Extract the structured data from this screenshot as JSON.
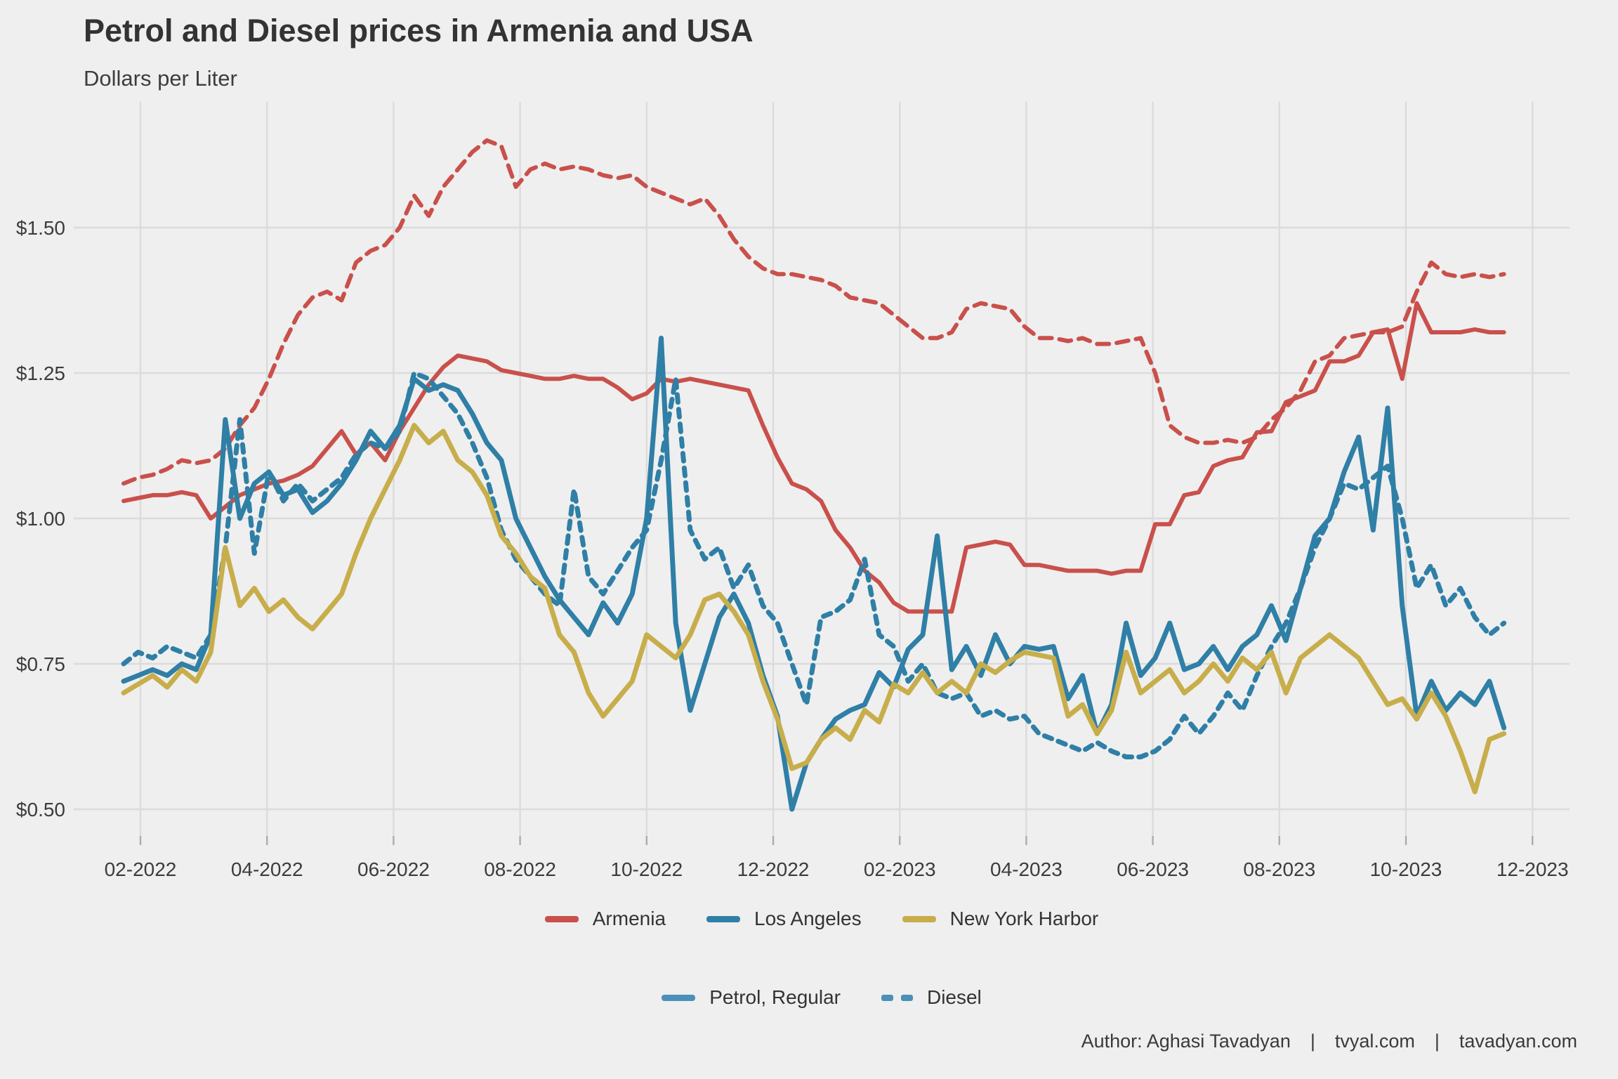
{
  "header": {
    "title": "Petrol and Diesel prices in Armenia and USA",
    "subtitle": "Dollars per Liter"
  },
  "footer": {
    "author": "Author: Aghasi Tavadyan",
    "separator": "|",
    "site1": "tvyal.com",
    "site2": "tavadyan.com"
  },
  "legend_region": {
    "items": [
      {
        "label": "Armenia",
        "color": "#C9504B"
      },
      {
        "label": "Los Angeles",
        "color": "#2F7FA6"
      },
      {
        "label": "New York Harbor",
        "color": "#C7AE4B"
      }
    ]
  },
  "legend_fuel": {
    "color": "#4A90B8",
    "items": [
      {
        "label": "Petrol, Regular",
        "dash": "solid"
      },
      {
        "label": "Diesel",
        "dash": "dashed"
      }
    ]
  },
  "chart_data": {
    "type": "line",
    "title": "Petrol and Diesel prices in Armenia and USA",
    "ylabel_note": "Dollars per Liter",
    "grid": true,
    "legend_position": "bottom",
    "background": "#EFEFEF",
    "grid_color": "#DBDBDB",
    "tick_color": "#ACACAC",
    "label_color": "#3c3c3c",
    "x_axis": {
      "start_date": "2022-01-24",
      "interval_days": 7,
      "n_points": 96,
      "tick_labels": [
        "02-2022",
        "04-2022",
        "06-2022",
        "08-2022",
        "10-2022",
        "12-2022",
        "02-2023",
        "04-2023",
        "06-2023",
        "08-2023",
        "10-2023",
        "12-2023"
      ],
      "tick_month_offsets": [
        0,
        2,
        4,
        6,
        8,
        10,
        12,
        14,
        16,
        18,
        20,
        22
      ]
    },
    "y_axis": {
      "tick_labels": [
        "$0.50",
        "$0.75",
        "$1.00",
        "$1.25",
        "$1.50"
      ],
      "tick_values": [
        0.5,
        0.75,
        1.0,
        1.25,
        1.5
      ],
      "ylim": [
        0.45,
        1.72
      ]
    },
    "series": [
      {
        "name": "Armenia Petrol, Regular",
        "region": "Armenia",
        "fuel": "Petrol, Regular",
        "color": "#C9504B",
        "dash": "solid",
        "width": 6,
        "values": [
          1.03,
          1.035,
          1.04,
          1.04,
          1.045,
          1.04,
          1.0,
          1.02,
          1.04,
          1.05,
          1.06,
          1.065,
          1.075,
          1.09,
          1.12,
          1.15,
          1.11,
          1.13,
          1.1,
          1.15,
          1.19,
          1.23,
          1.26,
          1.28,
          1.275,
          1.27,
          1.255,
          1.25,
          1.245,
          1.24,
          1.24,
          1.245,
          1.24,
          1.24,
          1.225,
          1.205,
          1.215,
          1.24,
          1.235,
          1.24,
          1.235,
          1.23,
          1.225,
          1.22,
          1.16,
          1.105,
          1.06,
          1.05,
          1.03,
          0.98,
          0.95,
          0.91,
          0.89,
          0.855,
          0.84,
          0.84,
          0.84,
          0.84,
          0.95,
          0.955,
          0.96,
          0.955,
          0.92,
          0.92,
          0.915,
          0.91,
          0.91,
          0.91,
          0.905,
          0.91,
          0.91,
          0.99,
          0.99,
          1.04,
          1.045,
          1.09,
          1.1,
          1.105,
          1.148,
          1.15,
          1.2,
          1.21,
          1.22,
          1.27,
          1.27,
          1.28,
          1.32,
          1.325,
          1.24,
          1.37,
          1.32,
          1.32,
          1.32,
          1.325,
          1.32,
          1.32
        ]
      },
      {
        "name": "Armenia Diesel",
        "region": "Armenia",
        "fuel": "Diesel",
        "color": "#C9504B",
        "dash": "dashed",
        "width": 6,
        "values": [
          1.06,
          1.07,
          1.075,
          1.085,
          1.1,
          1.095,
          1.1,
          1.12,
          1.16,
          1.19,
          1.24,
          1.3,
          1.35,
          1.38,
          1.39,
          1.375,
          1.44,
          1.46,
          1.47,
          1.5,
          1.555,
          1.52,
          1.57,
          1.6,
          1.63,
          1.65,
          1.64,
          1.57,
          1.6,
          1.61,
          1.6,
          1.605,
          1.6,
          1.59,
          1.585,
          1.59,
          1.57,
          1.56,
          1.55,
          1.54,
          1.55,
          1.52,
          1.48,
          1.45,
          1.43,
          1.42,
          1.42,
          1.415,
          1.41,
          1.4,
          1.38,
          1.375,
          1.37,
          1.35,
          1.33,
          1.31,
          1.31,
          1.32,
          1.36,
          1.37,
          1.365,
          1.36,
          1.33,
          1.31,
          1.31,
          1.305,
          1.31,
          1.3,
          1.3,
          1.305,
          1.31,
          1.25,
          1.16,
          1.14,
          1.13,
          1.13,
          1.135,
          1.13,
          1.14,
          1.17,
          1.19,
          1.22,
          1.27,
          1.28,
          1.31,
          1.315,
          1.32,
          1.32,
          1.33,
          1.39,
          1.44,
          1.42,
          1.415,
          1.42,
          1.415,
          1.42
        ]
      },
      {
        "name": "Los Angeles Petrol, Regular",
        "region": "Los Angeles",
        "fuel": "Petrol, Regular",
        "color": "#2F7FA6",
        "dash": "solid",
        "width": 7,
        "values": [
          0.72,
          0.73,
          0.74,
          0.73,
          0.75,
          0.74,
          0.8,
          1.17,
          1.0,
          1.06,
          1.08,
          1.04,
          1.05,
          1.01,
          1.03,
          1.06,
          1.1,
          1.15,
          1.12,
          1.16,
          1.24,
          1.22,
          1.23,
          1.22,
          1.18,
          1.13,
          1.1,
          1.0,
          0.95,
          0.9,
          0.86,
          0.83,
          0.8,
          0.855,
          0.82,
          0.87,
          1.0,
          1.31,
          0.82,
          0.67,
          0.75,
          0.83,
          0.87,
          0.82,
          0.73,
          0.66,
          0.5,
          0.58,
          0.62,
          0.655,
          0.67,
          0.68,
          0.735,
          0.71,
          0.775,
          0.8,
          0.97,
          0.74,
          0.78,
          0.73,
          0.8,
          0.75,
          0.78,
          0.775,
          0.78,
          0.69,
          0.73,
          0.63,
          0.68,
          0.82,
          0.73,
          0.76,
          0.82,
          0.74,
          0.75,
          0.78,
          0.74,
          0.78,
          0.8,
          0.85,
          0.79,
          0.88,
          0.97,
          1.0,
          1.08,
          1.14,
          0.98,
          1.19,
          0.85,
          0.66,
          0.72,
          0.67,
          0.7,
          0.68,
          0.72,
          0.64
        ]
      },
      {
        "name": "Los Angeles Diesel",
        "region": "Los Angeles",
        "fuel": "Diesel",
        "color": "#2F7FA6",
        "dash": "dashed",
        "width": 7,
        "values": [
          0.75,
          0.77,
          0.76,
          0.78,
          0.77,
          0.76,
          0.8,
          0.95,
          1.17,
          0.94,
          1.08,
          1.03,
          1.06,
          1.03,
          1.05,
          1.07,
          1.11,
          1.13,
          1.12,
          1.15,
          1.25,
          1.24,
          1.21,
          1.18,
          1.13,
          1.07,
          0.98,
          0.93,
          0.9,
          0.87,
          0.85,
          1.05,
          0.9,
          0.87,
          0.91,
          0.95,
          0.98,
          1.1,
          1.24,
          0.98,
          0.93,
          0.95,
          0.88,
          0.92,
          0.85,
          0.82,
          0.75,
          0.68,
          0.83,
          0.84,
          0.86,
          0.93,
          0.8,
          0.78,
          0.72,
          0.75,
          0.7,
          0.69,
          0.7,
          0.66,
          0.67,
          0.655,
          0.66,
          0.63,
          0.62,
          0.61,
          0.6,
          0.615,
          0.6,
          0.59,
          0.59,
          0.6,
          0.62,
          0.66,
          0.63,
          0.66,
          0.7,
          0.67,
          0.73,
          0.78,
          0.82,
          0.88,
          0.95,
          1.0,
          1.06,
          1.05,
          1.07,
          1.09,
          1.0,
          0.88,
          0.92,
          0.85,
          0.88,
          0.83,
          0.8,
          0.82
        ]
      },
      {
        "name": "New York Harbor Petrol, Regular",
        "region": "New York Harbor",
        "fuel": "Petrol, Regular",
        "color": "#C7AE4B",
        "dash": "solid",
        "width": 7,
        "values": [
          0.7,
          0.715,
          0.73,
          0.71,
          0.74,
          0.72,
          0.77,
          0.95,
          0.85,
          0.88,
          0.84,
          0.86,
          0.83,
          0.81,
          0.84,
          0.87,
          0.94,
          1.0,
          1.05,
          1.1,
          1.16,
          1.13,
          1.15,
          1.1,
          1.08,
          1.04,
          0.97,
          0.94,
          0.9,
          0.88,
          0.8,
          0.77,
          0.7,
          0.66,
          0.69,
          0.72,
          0.8,
          0.78,
          0.76,
          0.8,
          0.86,
          0.87,
          0.84,
          0.8,
          0.72,
          0.655,
          0.57,
          0.58,
          0.62,
          0.64,
          0.62,
          0.67,
          0.65,
          0.715,
          0.7,
          0.735,
          0.7,
          0.72,
          0.7,
          0.75,
          0.735,
          0.755,
          0.77,
          0.765,
          0.76,
          0.66,
          0.68,
          0.63,
          0.67,
          0.77,
          0.7,
          0.72,
          0.74,
          0.7,
          0.72,
          0.75,
          0.72,
          0.76,
          0.74,
          0.77,
          0.7,
          0.76,
          0.78,
          0.8,
          0.78,
          0.76,
          0.72,
          0.68,
          0.69,
          0.655,
          0.7,
          0.66,
          0.6,
          0.53,
          0.62,
          0.63
        ]
      }
    ]
  }
}
